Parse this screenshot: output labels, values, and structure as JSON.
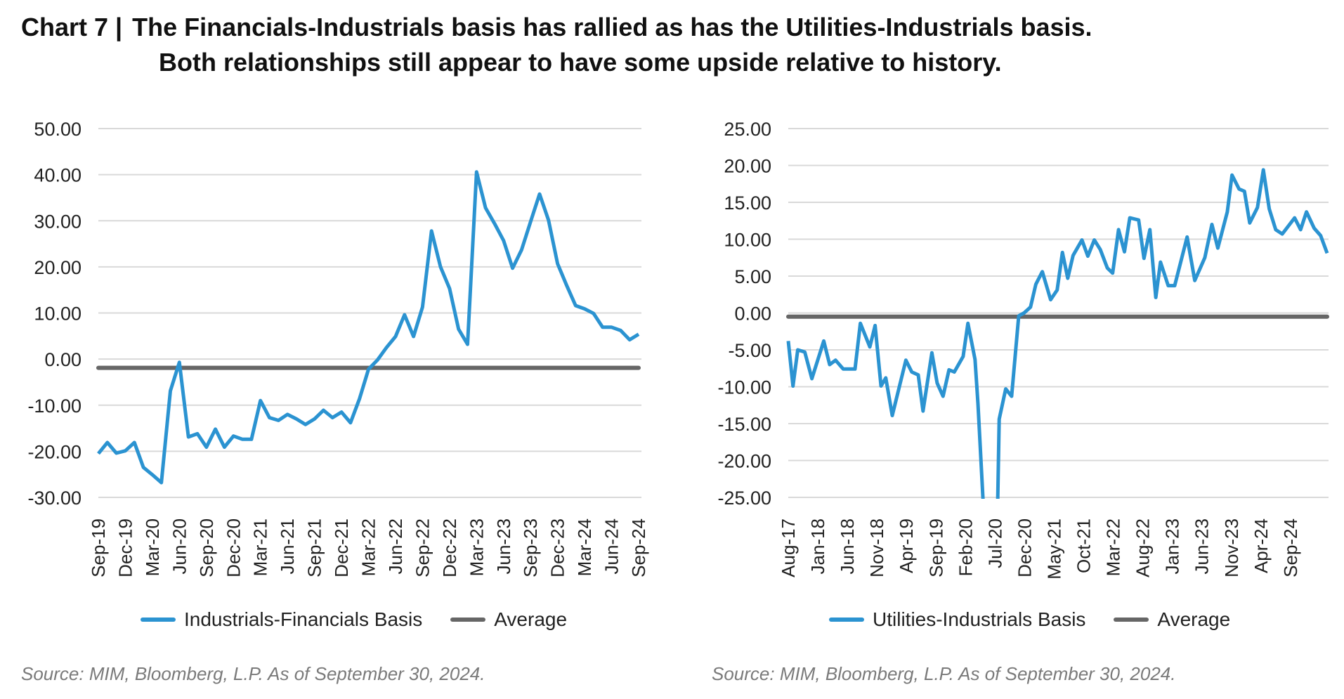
{
  "title": {
    "chart_number": "Chart 7",
    "separator": "|",
    "line1": "The Financials-Industrials basis has rallied as has the Utilities-Industrials basis.",
    "line2": "Both relationships still appear to have some upside relative to history."
  },
  "colors": {
    "series": "#2b93d1",
    "average": "#666666",
    "grid": "#d9d9d9"
  },
  "chart_data": [
    {
      "type": "line",
      "title": "",
      "xlabel": "",
      "ylabel": "",
      "ylim": [
        -30,
        50
      ],
      "yticks": [
        "50.00",
        "40.00",
        "30.00",
        "20.00",
        "10.00",
        "0.00",
        "-10.00",
        "-20.00",
        "-30.00"
      ],
      "ytick_values": [
        50,
        40,
        30,
        20,
        10,
        0,
        -10,
        -20,
        -30
      ],
      "x_unit": "month index from Sep-19",
      "xlim": [
        0,
        60
      ],
      "xtick_labels": [
        "Sep-19",
        "Dec-19",
        "Mar-20",
        "Jun-20",
        "Sep-20",
        "Dec-20",
        "Mar-21",
        "Jun-21",
        "Sep-21",
        "Dec-21",
        "Mar-22",
        "Jun-22",
        "Sep-22",
        "Dec-22",
        "Mar-23",
        "Jun-23",
        "Sep-23",
        "Dec-23",
        "Mar-24",
        "Jun-24",
        "Sep-24"
      ],
      "xtick_step": 3,
      "grid": true,
      "legend_position": "bottom",
      "series": [
        {
          "name": "Industrials-Financials Basis",
          "values": [
            -20.5,
            -18.1,
            -20.4,
            -19.9,
            -18.1,
            -23.5,
            -25.1,
            -26.8,
            -6.9,
            -0.7,
            -16.9,
            -16.2,
            -19.1,
            -15.2,
            -19.1,
            -16.7,
            -17.4,
            -17.4,
            -9.0,
            -12.7,
            -13.3,
            -12.0,
            -13.0,
            -14.2,
            -13.0,
            -11.1,
            -12.7,
            -11.5,
            -13.8,
            -8.6,
            -2.2,
            -0.2,
            2.5,
            4.9,
            9.6,
            4.9,
            11.3,
            27.8,
            20.0,
            15.3,
            6.5,
            3.2,
            40.6,
            32.8,
            29.4,
            25.7,
            19.7,
            23.7,
            29.8,
            35.8,
            30.1,
            20.7,
            16.0,
            11.6,
            10.9,
            9.9,
            6.9,
            6.9,
            6.2,
            4.2,
            5.4
          ]
        },
        {
          "name": "Average",
          "constant": -1.9
        }
      ],
      "source": "Source: MIM, Bloomberg, L.P. As of September 30, 2024."
    },
    {
      "type": "line",
      "title": "",
      "xlabel": "",
      "ylabel": "",
      "ylim": [
        -25,
        25
      ],
      "yticks": [
        "25.00",
        "20.00",
        "15.00",
        "10.00",
        "5.00",
        "0.00",
        "-5.00",
        "-10.00",
        "-15.00",
        "-20.00",
        "-25.00"
      ],
      "ytick_values": [
        25,
        20,
        15,
        10,
        5,
        0,
        -5,
        -10,
        -15,
        -20,
        -25
      ],
      "x_unit": "months since Aug-17",
      "xlim": [
        0,
        91.2
      ],
      "xtick_labels": [
        "Aug-17",
        "Jan-18",
        "Jun-18",
        "Nov-18",
        "Apr-19",
        "Sep-19",
        "Feb-20",
        "Jul-20",
        "Dec-20",
        "May-21",
        "Oct-21",
        "Mar-22",
        "Aug-22",
        "Jan-23",
        "Jun-23",
        "Nov-23",
        "Apr-24",
        "Sep-24"
      ],
      "xtick_step": 5,
      "grid": true,
      "legend_position": "bottom",
      "series": [
        {
          "name": "Utilities-Industrials Basis",
          "points": [
            [
              0,
              -3.8
            ],
            [
              0.8,
              -9.9
            ],
            [
              1.6,
              -5.0
            ],
            [
              2.8,
              -5.3
            ],
            [
              4,
              -8.9
            ],
            [
              6,
              -3.8
            ],
            [
              7,
              -7.0
            ],
            [
              8,
              -6.4
            ],
            [
              9.3,
              -7.6
            ],
            [
              11.3,
              -7.6
            ],
            [
              12.2,
              -1.4
            ],
            [
              13.8,
              -4.6
            ],
            [
              14.7,
              -1.7
            ],
            [
              15.7,
              -9.9
            ],
            [
              16.5,
              -8.8
            ],
            [
              17.6,
              -13.9
            ],
            [
              19.9,
              -6.4
            ],
            [
              20.9,
              -8.0
            ],
            [
              22,
              -8.4
            ],
            [
              22.8,
              -13.3
            ],
            [
              24.3,
              -5.4
            ],
            [
              25.2,
              -9.5
            ],
            [
              26.2,
              -11.3
            ],
            [
              27.2,
              -7.7
            ],
            [
              28.1,
              -8.0
            ],
            [
              29.6,
              -5.9
            ],
            [
              30.4,
              -1.4
            ],
            [
              31.6,
              -6.3
            ],
            [
              32.1,
              -12.3
            ],
            [
              33.4,
              -32
            ],
            [
              35.3,
              -32
            ],
            [
              35.7,
              -14.4
            ],
            [
              36.8,
              -10.3
            ],
            [
              37.8,
              -11.3
            ],
            [
              39,
              -0.4
            ],
            [
              39.9,
              0.0
            ],
            [
              41,
              0.8
            ],
            [
              41.9,
              3.9
            ],
            [
              43,
              5.6
            ],
            [
              44.4,
              1.8
            ],
            [
              45.5,
              3.1
            ],
            [
              46.4,
              8.2
            ],
            [
              47.3,
              4.7
            ],
            [
              48.2,
              7.8
            ],
            [
              49.7,
              9.9
            ],
            [
              50.7,
              7.7
            ],
            [
              51.8,
              9.9
            ],
            [
              52.8,
              8.6
            ],
            [
              54,
              6.1
            ],
            [
              54.9,
              5.4
            ],
            [
              55.9,
              11.3
            ],
            [
              56.9,
              8.3
            ],
            [
              57.8,
              12.9
            ],
            [
              59.3,
              12.6
            ],
            [
              60.2,
              7.4
            ],
            [
              61.2,
              11.3
            ],
            [
              62.2,
              2.1
            ],
            [
              63,
              6.9
            ],
            [
              64.3,
              3.7
            ],
            [
              65.4,
              3.7
            ],
            [
              67.5,
              10.3
            ],
            [
              68.8,
              4.4
            ],
            [
              70.5,
              7.5
            ],
            [
              71.7,
              12.0
            ],
            [
              72.7,
              8.8
            ],
            [
              74.3,
              13.7
            ],
            [
              75.1,
              18.7
            ],
            [
              76.3,
              16.8
            ],
            [
              77.2,
              16.5
            ],
            [
              78.1,
              12.2
            ],
            [
              79.4,
              14.3
            ],
            [
              80.4,
              19.4
            ],
            [
              81.4,
              14.1
            ],
            [
              82.5,
              11.3
            ],
            [
              83.6,
              10.7
            ],
            [
              85.7,
              12.9
            ],
            [
              86.7,
              11.3
            ],
            [
              87.7,
              13.7
            ],
            [
              89,
              11.5
            ],
            [
              90.1,
              10.5
            ],
            [
              91.2,
              8.1
            ]
          ]
        },
        {
          "name": "Average",
          "constant": -0.5
        }
      ],
      "source": "Source: MIM, Bloomberg, L.P. As of September 30, 2024."
    }
  ]
}
